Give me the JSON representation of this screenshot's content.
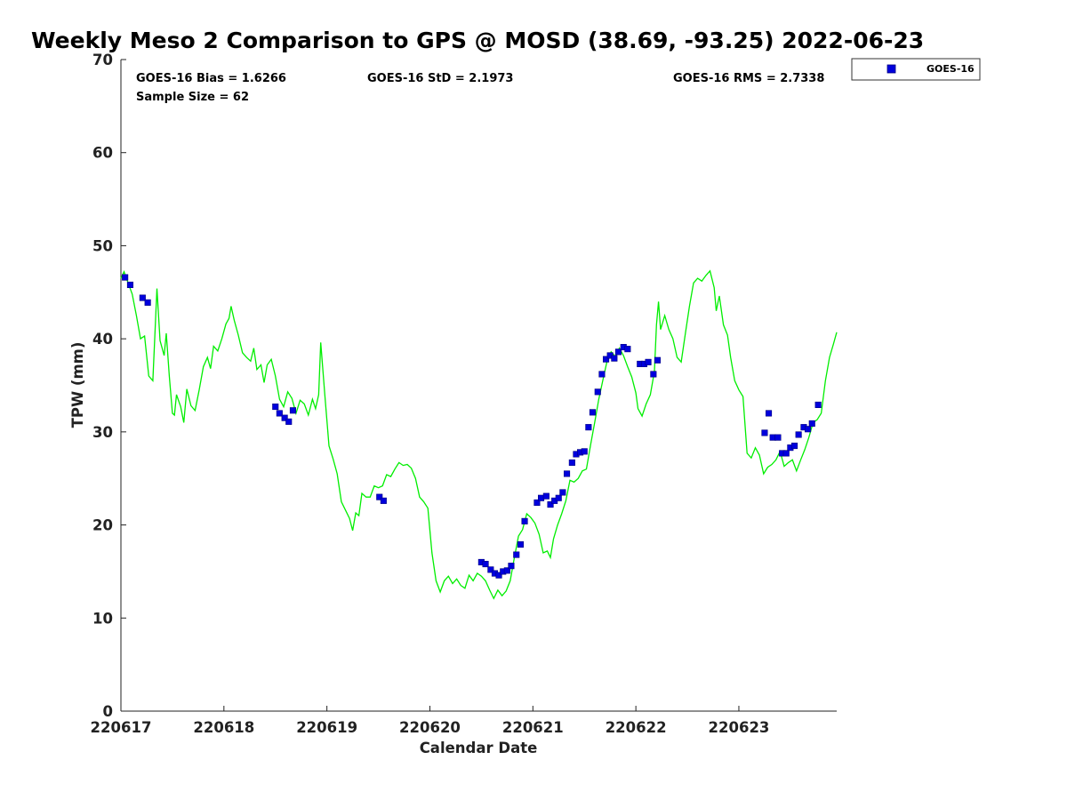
{
  "chart_data": {
    "type": "scatter",
    "title": "Weekly Meso 2 Comparison to GPS @ MOSD (38.69, -93.25) 2022-06-23",
    "xlabel": "Calendar Date",
    "ylabel": "TPW (mm)",
    "xlim": [
      "220617",
      "220623.95"
    ],
    "ylim": [
      0,
      70
    ],
    "yticks": [
      0,
      10,
      20,
      30,
      40,
      50,
      60,
      70
    ],
    "xticks": [
      "220617",
      "220618",
      "220619",
      "220620",
      "220621",
      "220622",
      "220623"
    ],
    "grid": false,
    "legend": {
      "position": "outside-top-right",
      "entries": [
        "GOES-16"
      ]
    },
    "stats": {
      "bias": "GOES-16 Bias = 1.6266",
      "std": "GOES-16 StD = 2.1973",
      "rms": "GOES-16 RMS = 2.7338",
      "sample": "Sample Size = 62"
    },
    "series": [
      {
        "name": "GOES-16",
        "style": "markers",
        "color": "#0000dd",
        "points": [
          [
            0.04,
            46.6
          ],
          [
            0.09,
            45.8
          ],
          [
            0.21,
            44.4
          ],
          [
            0.26,
            43.9
          ],
          [
            1.5,
            32.7
          ],
          [
            1.54,
            32.0
          ],
          [
            1.59,
            31.5
          ],
          [
            1.63,
            31.1
          ],
          [
            1.67,
            32.3
          ],
          [
            2.51,
            23.0
          ],
          [
            2.55,
            22.6
          ],
          [
            3.5,
            16.0
          ],
          [
            3.54,
            15.8
          ],
          [
            3.59,
            15.2
          ],
          [
            3.63,
            14.8
          ],
          [
            3.67,
            14.6
          ],
          [
            3.71,
            15.0
          ],
          [
            3.75,
            15.1
          ],
          [
            3.79,
            15.6
          ],
          [
            3.84,
            16.8
          ],
          [
            3.88,
            17.9
          ],
          [
            3.92,
            20.4
          ],
          [
            4.04,
            22.4
          ],
          [
            4.08,
            22.9
          ],
          [
            4.13,
            23.1
          ],
          [
            4.17,
            22.2
          ],
          [
            4.21,
            22.6
          ],
          [
            4.25,
            22.9
          ],
          [
            4.29,
            23.5
          ],
          [
            4.33,
            25.5
          ],
          [
            4.38,
            26.7
          ],
          [
            4.42,
            27.6
          ],
          [
            4.46,
            27.8
          ],
          [
            4.5,
            27.9
          ],
          [
            4.54,
            30.5
          ],
          [
            4.58,
            32.1
          ],
          [
            4.63,
            34.3
          ],
          [
            4.67,
            36.2
          ],
          [
            4.71,
            37.8
          ],
          [
            4.75,
            38.2
          ],
          [
            4.79,
            37.9
          ],
          [
            4.83,
            38.6
          ],
          [
            4.88,
            39.1
          ],
          [
            4.92,
            38.9
          ],
          [
            5.04,
            37.3
          ],
          [
            5.08,
            37.3
          ],
          [
            5.12,
            37.5
          ],
          [
            5.17,
            36.2
          ],
          [
            5.21,
            37.7
          ],
          [
            6.25,
            29.9
          ],
          [
            6.29,
            32.0
          ],
          [
            6.33,
            29.4
          ],
          [
            6.38,
            29.4
          ],
          [
            6.42,
            27.7
          ],
          [
            6.46,
            27.7
          ],
          [
            6.5,
            28.3
          ],
          [
            6.54,
            28.5
          ],
          [
            6.58,
            29.7
          ],
          [
            6.63,
            30.5
          ],
          [
            6.67,
            30.3
          ],
          [
            6.71,
            30.9
          ],
          [
            6.77,
            32.9
          ]
        ]
      },
      {
        "name": "GPS",
        "style": "line",
        "color": "#00ee00",
        "points": [
          [
            0.0,
            46.5
          ],
          [
            0.03,
            47.2
          ],
          [
            0.07,
            46.0
          ],
          [
            0.11,
            44.8
          ],
          [
            0.15,
            42.5
          ],
          [
            0.19,
            40.0
          ],
          [
            0.23,
            40.3
          ],
          [
            0.27,
            36.0
          ],
          [
            0.31,
            35.5
          ],
          [
            0.35,
            45.4
          ],
          [
            0.38,
            39.8
          ],
          [
            0.42,
            38.2
          ],
          [
            0.44,
            40.6
          ],
          [
            0.47,
            36.0
          ],
          [
            0.5,
            32.0
          ],
          [
            0.52,
            31.8
          ],
          [
            0.54,
            34.0
          ],
          [
            0.58,
            32.7
          ],
          [
            0.61,
            31.0
          ],
          [
            0.64,
            34.6
          ],
          [
            0.68,
            32.8
          ],
          [
            0.72,
            32.3
          ],
          [
            0.76,
            34.5
          ],
          [
            0.8,
            37.0
          ],
          [
            0.84,
            38.0
          ],
          [
            0.87,
            36.8
          ],
          [
            0.9,
            39.2
          ],
          [
            0.94,
            38.7
          ],
          [
            0.98,
            40.0
          ],
          [
            1.02,
            41.6
          ],
          [
            1.05,
            42.2
          ],
          [
            1.07,
            43.5
          ],
          [
            1.1,
            42.0
          ],
          [
            1.14,
            40.4
          ],
          [
            1.18,
            38.5
          ],
          [
            1.22,
            38.0
          ],
          [
            1.26,
            37.6
          ],
          [
            1.29,
            39.0
          ],
          [
            1.32,
            36.7
          ],
          [
            1.36,
            37.2
          ],
          [
            1.39,
            35.3
          ],
          [
            1.42,
            37.2
          ],
          [
            1.46,
            37.8
          ],
          [
            1.5,
            36.0
          ],
          [
            1.54,
            33.5
          ],
          [
            1.58,
            32.7
          ],
          [
            1.62,
            34.3
          ],
          [
            1.66,
            33.6
          ],
          [
            1.7,
            32.0
          ],
          [
            1.74,
            33.4
          ],
          [
            1.78,
            33.0
          ],
          [
            1.82,
            31.8
          ],
          [
            1.86,
            33.5
          ],
          [
            1.89,
            32.5
          ],
          [
            1.92,
            34.0
          ],
          [
            1.94,
            39.6
          ],
          [
            1.98,
            34.0
          ],
          [
            2.02,
            28.5
          ],
          [
            2.06,
            27.1
          ],
          [
            2.1,
            25.5
          ],
          [
            2.14,
            22.5
          ],
          [
            2.18,
            21.6
          ],
          [
            2.22,
            20.7
          ],
          [
            2.25,
            19.4
          ],
          [
            2.28,
            21.3
          ],
          [
            2.31,
            21.0
          ],
          [
            2.34,
            23.4
          ],
          [
            2.38,
            23.0
          ],
          [
            2.42,
            23.0
          ],
          [
            2.46,
            24.2
          ],
          [
            2.5,
            24.0
          ],
          [
            2.54,
            24.2
          ],
          [
            2.58,
            25.4
          ],
          [
            2.62,
            25.2
          ],
          [
            2.66,
            26.0
          ],
          [
            2.7,
            26.7
          ],
          [
            2.74,
            26.4
          ],
          [
            2.78,
            26.5
          ],
          [
            2.82,
            26.1
          ],
          [
            2.86,
            25.0
          ],
          [
            2.9,
            23.0
          ],
          [
            2.94,
            22.5
          ],
          [
            2.98,
            21.8
          ],
          [
            3.02,
            17.0
          ],
          [
            3.06,
            14.0
          ],
          [
            3.1,
            12.8
          ],
          [
            3.14,
            14.0
          ],
          [
            3.18,
            14.5
          ],
          [
            3.22,
            13.7
          ],
          [
            3.26,
            14.2
          ],
          [
            3.3,
            13.5
          ],
          [
            3.34,
            13.2
          ],
          [
            3.38,
            14.6
          ],
          [
            3.42,
            14.0
          ],
          [
            3.46,
            14.8
          ],
          [
            3.5,
            14.5
          ],
          [
            3.54,
            14.0
          ],
          [
            3.58,
            13.0
          ],
          [
            3.62,
            12.1
          ],
          [
            3.66,
            13.0
          ],
          [
            3.7,
            12.4
          ],
          [
            3.74,
            12.9
          ],
          [
            3.78,
            14.0
          ],
          [
            3.82,
            16.5
          ],
          [
            3.86,
            18.8
          ],
          [
            3.9,
            19.5
          ],
          [
            3.94,
            21.2
          ],
          [
            3.98,
            20.8
          ],
          [
            4.02,
            20.2
          ],
          [
            4.06,
            19.0
          ],
          [
            4.1,
            17.0
          ],
          [
            4.14,
            17.2
          ],
          [
            4.17,
            16.5
          ],
          [
            4.2,
            18.5
          ],
          [
            4.24,
            20.0
          ],
          [
            4.28,
            21.2
          ],
          [
            4.32,
            22.6
          ],
          [
            4.36,
            24.8
          ],
          [
            4.4,
            24.6
          ],
          [
            4.44,
            25.0
          ],
          [
            4.48,
            25.8
          ],
          [
            4.52,
            26.0
          ],
          [
            4.56,
            28.6
          ],
          [
            4.6,
            31.0
          ],
          [
            4.64,
            33.5
          ],
          [
            4.68,
            35.6
          ],
          [
            4.72,
            37.6
          ],
          [
            4.76,
            38.6
          ],
          [
            4.8,
            38.1
          ],
          [
            4.84,
            39.0
          ],
          [
            4.88,
            38.2
          ],
          [
            4.92,
            37.0
          ],
          [
            4.96,
            35.9
          ],
          [
            5.0,
            34.2
          ],
          [
            5.02,
            32.5
          ],
          [
            5.06,
            31.7
          ],
          [
            5.1,
            33.0
          ],
          [
            5.14,
            34.0
          ],
          [
            5.18,
            36.5
          ],
          [
            5.2,
            41.5
          ],
          [
            5.22,
            44.0
          ],
          [
            5.24,
            41.0
          ],
          [
            5.28,
            42.5
          ],
          [
            5.32,
            41.0
          ],
          [
            5.36,
            40.0
          ],
          [
            5.4,
            38.0
          ],
          [
            5.44,
            37.5
          ],
          [
            5.48,
            40.5
          ],
          [
            5.52,
            43.5
          ],
          [
            5.56,
            46.0
          ],
          [
            5.6,
            46.5
          ],
          [
            5.64,
            46.2
          ],
          [
            5.68,
            46.8
          ],
          [
            5.72,
            47.3
          ],
          [
            5.76,
            45.5
          ],
          [
            5.78,
            43.0
          ],
          [
            5.81,
            44.6
          ],
          [
            5.85,
            41.5
          ],
          [
            5.89,
            40.4
          ],
          [
            5.92,
            38.0
          ],
          [
            5.96,
            35.5
          ],
          [
            6.0,
            34.5
          ],
          [
            6.04,
            33.8
          ],
          [
            6.08,
            27.7
          ],
          [
            6.12,
            27.2
          ],
          [
            6.16,
            28.3
          ],
          [
            6.2,
            27.5
          ],
          [
            6.24,
            25.5
          ],
          [
            6.28,
            26.2
          ],
          [
            6.32,
            26.5
          ],
          [
            6.36,
            27.0
          ],
          [
            6.4,
            27.9
          ],
          [
            6.44,
            26.3
          ],
          [
            6.48,
            26.7
          ],
          [
            6.52,
            27.0
          ],
          [
            6.56,
            25.8
          ],
          [
            6.6,
            27.0
          ],
          [
            6.64,
            28.1
          ],
          [
            6.68,
            29.4
          ],
          [
            6.72,
            31.0
          ],
          [
            6.76,
            31.3
          ],
          [
            6.8,
            32.0
          ],
          [
            6.84,
            35.5
          ],
          [
            6.88,
            38.0
          ],
          [
            6.92,
            39.5
          ],
          [
            6.95,
            40.7
          ]
        ]
      }
    ]
  }
}
